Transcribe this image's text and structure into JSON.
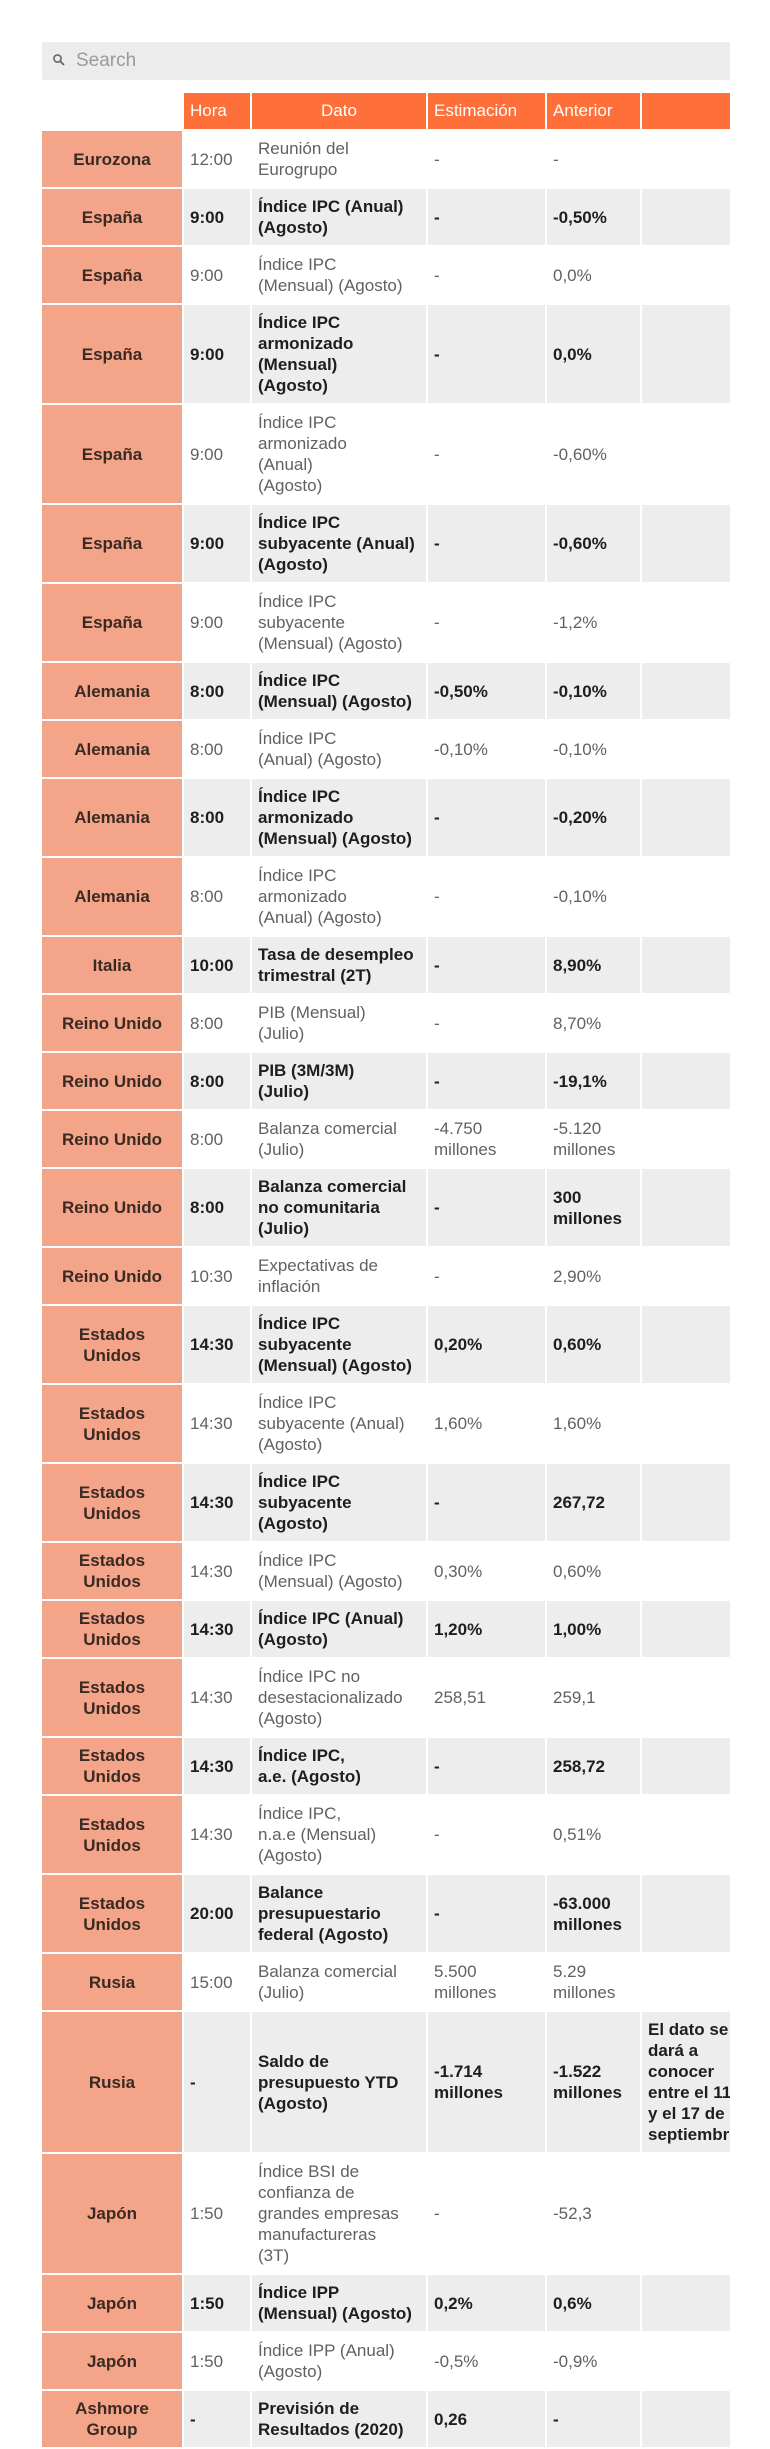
{
  "search": {
    "placeholder": "Search",
    "value": ""
  },
  "table": {
    "headers": [
      "",
      "Hora",
      "Dato",
      "Estimación",
      "Anterior",
      ""
    ],
    "rows": [
      {
        "country": [
          "Eurozona"
        ],
        "hora": "12:00",
        "dato": [
          "Reunión del",
          "Eurogrupo"
        ],
        "est": [
          "-"
        ],
        "ant": [
          "-"
        ],
        "extra": [],
        "bold": false
      },
      {
        "country": [
          "España"
        ],
        "hora": "9:00",
        "dato": [
          "Índice IPC (Anual)",
          "(Agosto)"
        ],
        "est": [
          "-"
        ],
        "ant": [
          "-0,50%"
        ],
        "extra": [],
        "bold": true
      },
      {
        "country": [
          "España"
        ],
        "hora": "9:00",
        "dato": [
          "Índice IPC",
          "(Mensual) (Agosto)"
        ],
        "est": [
          "-"
        ],
        "ant": [
          "0,0%"
        ],
        "extra": [],
        "bold": false
      },
      {
        "country": [
          "España"
        ],
        "hora": "9:00",
        "dato": [
          "Índice IPC",
          "armonizado",
          "(Mensual)",
          "(Agosto)"
        ],
        "est": [
          "-"
        ],
        "ant": [
          "0,0%"
        ],
        "extra": [],
        "bold": true
      },
      {
        "country": [
          "España"
        ],
        "hora": "9:00",
        "dato": [
          "Índice IPC",
          "armonizado",
          "(Anual)",
          "(Agosto)"
        ],
        "est": [
          "-"
        ],
        "ant": [
          "-0,60%"
        ],
        "extra": [],
        "bold": false
      },
      {
        "country": [
          "España"
        ],
        "hora": "9:00",
        "dato": [
          "Índice IPC",
          "subyacente (Anual)",
          "(Agosto)"
        ],
        "est": [
          "-"
        ],
        "ant": [
          "-0,60%"
        ],
        "extra": [],
        "bold": true
      },
      {
        "country": [
          "España"
        ],
        "hora": "9:00",
        "dato": [
          "Índice IPC",
          "subyacente",
          "(Mensual) (Agosto)"
        ],
        "est": [
          "-"
        ],
        "ant": [
          "-1,2%"
        ],
        "extra": [],
        "bold": false
      },
      {
        "country": [
          "Alemania"
        ],
        "hora": "8:00",
        "dato": [
          "Índice IPC",
          "(Mensual) (Agosto)"
        ],
        "est": [
          "-0,50%"
        ],
        "ant": [
          "-0,10%"
        ],
        "extra": [],
        "bold": true
      },
      {
        "country": [
          "Alemania"
        ],
        "hora": "8:00",
        "dato": [
          "Índice IPC",
          "(Anual) (Agosto)"
        ],
        "est": [
          "-0,10%"
        ],
        "ant": [
          "-0,10%"
        ],
        "extra": [],
        "bold": false
      },
      {
        "country": [
          "Alemania"
        ],
        "hora": "8:00",
        "dato": [
          "Índice IPC",
          "armonizado",
          "(Mensual) (Agosto)"
        ],
        "est": [
          "-"
        ],
        "ant": [
          "-0,20%"
        ],
        "extra": [],
        "bold": true
      },
      {
        "country": [
          "Alemania"
        ],
        "hora": "8:00",
        "dato": [
          "Índice IPC",
          "armonizado",
          "(Anual) (Agosto)"
        ],
        "est": [
          "-"
        ],
        "ant": [
          "-0,10%"
        ],
        "extra": [],
        "bold": false
      },
      {
        "country": [
          "Italia"
        ],
        "hora": "10:00",
        "dato": [
          "Tasa de desempleo",
          "trimestral (2T)"
        ],
        "est": [
          "-"
        ],
        "ant": [
          "8,90%"
        ],
        "extra": [],
        "bold": true
      },
      {
        "country": [
          "Reino Unido"
        ],
        "hora": "8:00",
        "dato": [
          "PIB (Mensual)",
          "(Julio)"
        ],
        "est": [
          "-"
        ],
        "ant": [
          "8,70%"
        ],
        "extra": [],
        "bold": false
      },
      {
        "country": [
          "Reino Unido"
        ],
        "hora": "8:00",
        "dato": [
          "PIB (3M/3M)",
          "(Julio)"
        ],
        "est": [
          "-"
        ],
        "ant": [
          "-19,1%"
        ],
        "extra": [],
        "bold": true
      },
      {
        "country": [
          "Reino Unido"
        ],
        "hora": "8:00",
        "dato": [
          "Balanza comercial",
          "(Julio)"
        ],
        "est": [
          "-4.750",
          "millones"
        ],
        "ant": [
          "-5.120",
          "millones"
        ],
        "extra": [],
        "bold": false
      },
      {
        "country": [
          "Reino Unido"
        ],
        "hora": "8:00",
        "dato": [
          "Balanza comercial",
          "no comunitaria",
          "(Julio)"
        ],
        "est": [
          "-"
        ],
        "ant": [
          "300",
          "millones"
        ],
        "extra": [],
        "bold": true
      },
      {
        "country": [
          "Reino Unido"
        ],
        "hora": "10:30",
        "dato": [
          "Expectativas de",
          "inflación"
        ],
        "est": [
          "-"
        ],
        "ant": [
          "2,90%"
        ],
        "extra": [],
        "bold": false
      },
      {
        "country": [
          "Estados",
          "Unidos"
        ],
        "hora": "14:30",
        "dato": [
          "Índice IPC",
          "subyacente",
          "(Mensual) (Agosto)"
        ],
        "est": [
          "0,20%"
        ],
        "ant": [
          "0,60%"
        ],
        "extra": [],
        "bold": true
      },
      {
        "country": [
          "Estados",
          "Unidos"
        ],
        "hora": "14:30",
        "dato": [
          "Índice IPC",
          "subyacente (Anual)",
          "(Agosto)"
        ],
        "est": [
          "1,60%"
        ],
        "ant": [
          "1,60%"
        ],
        "extra": [],
        "bold": false
      },
      {
        "country": [
          "Estados",
          "Unidos"
        ],
        "hora": "14:30",
        "dato": [
          "Índice IPC",
          "subyacente",
          "(Agosto)"
        ],
        "est": [
          "-"
        ],
        "ant": [
          "267,72"
        ],
        "extra": [],
        "bold": true
      },
      {
        "country": [
          "Estados",
          "Unidos"
        ],
        "hora": "14:30",
        "dato": [
          "Índice IPC",
          "(Mensual) (Agosto)"
        ],
        "est": [
          "0,30%"
        ],
        "ant": [
          "0,60%"
        ],
        "extra": [],
        "bold": false
      },
      {
        "country": [
          "Estados",
          "Unidos"
        ],
        "hora": "14:30",
        "dato": [
          "Índice IPC (Anual)",
          "(Agosto)"
        ],
        "est": [
          "1,20%"
        ],
        "ant": [
          "1,00%"
        ],
        "extra": [],
        "bold": true
      },
      {
        "country": [
          "Estados",
          "Unidos"
        ],
        "hora": "14:30",
        "dato": [
          "Índice IPC no",
          "desestacionalizado",
          "(Agosto)"
        ],
        "est": [
          "258,51"
        ],
        "ant": [
          "259,1"
        ],
        "extra": [],
        "bold": false
      },
      {
        "country": [
          "Estados",
          "Unidos"
        ],
        "hora": "14:30",
        "dato": [
          "Índice IPC,",
          "a.e. (Agosto)"
        ],
        "est": [
          "-"
        ],
        "ant": [
          "258,72"
        ],
        "extra": [],
        "bold": true
      },
      {
        "country": [
          "Estados",
          "Unidos"
        ],
        "hora": "14:30",
        "dato": [
          "Índice IPC,",
          "n.a.e (Mensual)",
          "(Agosto)"
        ],
        "est": [
          "-"
        ],
        "ant": [
          "0,51%"
        ],
        "extra": [],
        "bold": false
      },
      {
        "country": [
          "Estados",
          "Unidos"
        ],
        "hora": "20:00",
        "dato": [
          "Balance",
          "presupuestario",
          "federal (Agosto)"
        ],
        "est": [
          "-"
        ],
        "ant": [
          "-63.000",
          "millones"
        ],
        "extra": [],
        "bold": true
      },
      {
        "country": [
          "Rusia"
        ],
        "hora": "15:00",
        "dato": [
          "Balanza comercial",
          "(Julio)"
        ],
        "est": [
          "5.500",
          "millones"
        ],
        "ant": [
          "5.29",
          "millones"
        ],
        "extra": [],
        "bold": false
      },
      {
        "country": [
          "Rusia"
        ],
        "hora": "-",
        "dato": [
          "Saldo de",
          "presupuesto YTD",
          "(Agosto)"
        ],
        "est": [
          "-1.714",
          "millones"
        ],
        "ant": [
          "-1.522",
          "millones"
        ],
        "extra": [
          "El dato se",
          "dará a",
          "conocer",
          "entre el 11",
          "y el 17 de",
          "septiembre"
        ],
        "bold": true
      },
      {
        "country": [
          "Japón"
        ],
        "hora": "1:50",
        "dato": [
          "Índice BSI de",
          "confianza de",
          "grandes empresas",
          "manufactureras",
          "(3T)"
        ],
        "est": [
          "-"
        ],
        "ant": [
          "-52,3"
        ],
        "extra": [],
        "bold": false
      },
      {
        "country": [
          "Japón"
        ],
        "hora": "1:50",
        "dato": [
          "Índice IPP",
          "(Mensual) (Agosto)"
        ],
        "est": [
          "0,2%"
        ],
        "ant": [
          "0,6%"
        ],
        "extra": [],
        "bold": true
      },
      {
        "country": [
          "Japón"
        ],
        "hora": "1:50",
        "dato": [
          "Índice IPP (Anual)",
          "(Agosto)"
        ],
        "est": [
          "-0,5%"
        ],
        "ant": [
          "-0,9%"
        ],
        "extra": [],
        "bold": false
      },
      {
        "country": [
          "Ashmore",
          "Group"
        ],
        "hora": "-",
        "dato": [
          "Previsión de",
          "Resultados (2020)"
        ],
        "est": [
          "0,26"
        ],
        "ant": [
          "-"
        ],
        "extra": [],
        "bold": true
      }
    ]
  },
  "colors": {
    "header": "#ff6f3a",
    "country": "#f4a488",
    "stripe": "#ededed"
  }
}
